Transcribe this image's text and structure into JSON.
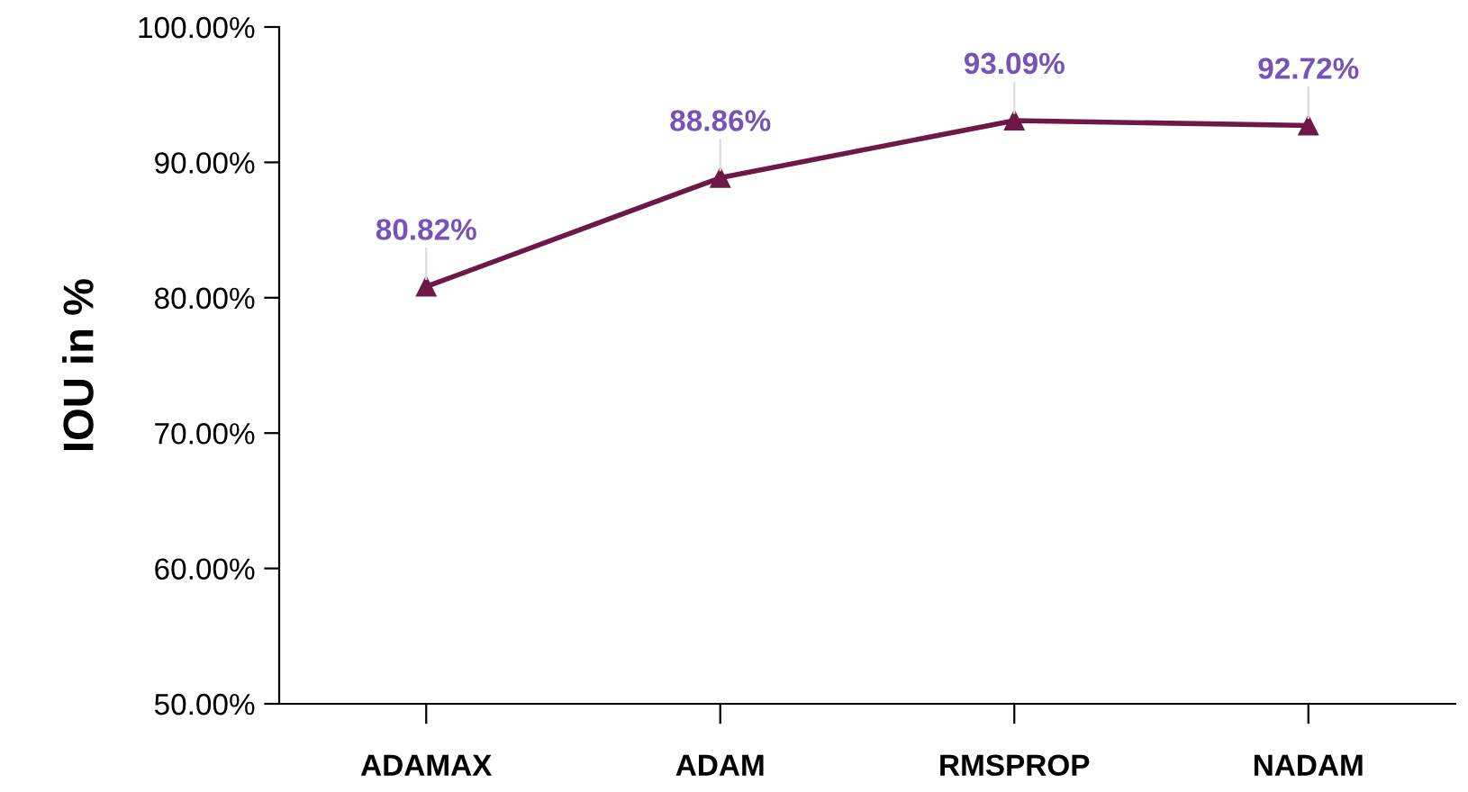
{
  "chart_data": {
    "type": "line",
    "ylabel": "IOU in %",
    "categories": [
      "ADAMAX",
      "ADAM",
      "RMSPROP",
      "NADAM"
    ],
    "series": [
      {
        "color": "#6e1848",
        "values": [
          80.82,
          88.86,
          93.09,
          92.72
        ],
        "value_labels": [
          "80.82%",
          "88.86%",
          "93.09%",
          "92.72%"
        ]
      }
    ],
    "ylim": [
      50,
      100
    ],
    "yticks": [
      {
        "value": 50,
        "label": "50.00%"
      },
      {
        "value": 60,
        "label": "60.00%"
      },
      {
        "value": 70,
        "label": "70.00%"
      },
      {
        "value": 80,
        "label": "80.00%"
      },
      {
        "value": 90,
        "label": "90.00%"
      },
      {
        "value": 100,
        "label": "100.00%"
      }
    ],
    "marker": "triangle",
    "line_style": "solid",
    "grid": false,
    "legend": false
  }
}
